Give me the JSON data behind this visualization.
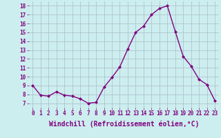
{
  "x": [
    0,
    1,
    2,
    3,
    4,
    5,
    6,
    7,
    8,
    9,
    10,
    11,
    12,
    13,
    14,
    15,
    16,
    17,
    18,
    19,
    20,
    21,
    22,
    23
  ],
  "y": [
    9.0,
    7.9,
    7.8,
    8.3,
    7.9,
    7.8,
    7.5,
    7.0,
    7.1,
    8.8,
    9.9,
    11.1,
    13.1,
    15.0,
    15.7,
    17.0,
    17.7,
    18.0,
    15.1,
    12.3,
    11.2,
    9.7,
    9.1,
    7.3
  ],
  "line_color": "#800080",
  "marker": "D",
  "marker_size": 2.0,
  "bg_color": "#cceeee",
  "grid_color": "#aabbcc",
  "xlabel": "Windchill (Refroidissement éolien,°C)",
  "ylim": [
    6.5,
    18.5
  ],
  "xlim": [
    -0.5,
    23.5
  ],
  "xtick_labels": [
    "0",
    "1",
    "2",
    "3",
    "4",
    "5",
    "6",
    "7",
    "8",
    "9",
    "10",
    "11",
    "12",
    "13",
    "14",
    "15",
    "16",
    "17",
    "18",
    "19",
    "20",
    "21",
    "22",
    "23"
  ],
  "ytick_labels": [
    "7",
    "8",
    "9",
    "10",
    "11",
    "12",
    "13",
    "14",
    "15",
    "16",
    "17",
    "18"
  ],
  "tick_fontsize": 5.5,
  "xlabel_fontsize": 7.0,
  "line_width": 1.0
}
